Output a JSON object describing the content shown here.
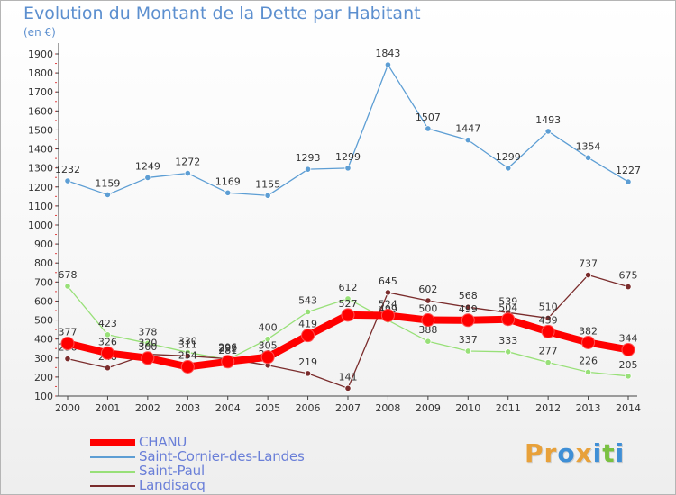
{
  "chart_data": {
    "type": "line",
    "title": "Evolution du Montant de la Dette par Habitant",
    "subtitle": "(en €)",
    "categories": [
      "2000",
      "2001",
      "2002",
      "2003",
      "2004",
      "2005",
      "2006",
      "2007",
      "2008",
      "2009",
      "2010",
      "2011",
      "2012",
      "2013",
      "2014"
    ],
    "ylim": [
      100,
      1900
    ],
    "yticks": [
      100,
      200,
      300,
      400,
      500,
      600,
      700,
      800,
      900,
      1000,
      1100,
      1200,
      1300,
      1400,
      1500,
      1600,
      1700,
      1800,
      1900
    ],
    "grid": false,
    "legend_position": "bottom-left",
    "series": [
      {
        "name": "CHANU",
        "color": "#ff0000",
        "values": [
          377,
          326,
          300,
          254,
          281,
          305,
          419,
          527,
          524,
          500,
          499,
          504,
          439,
          382,
          344
        ]
      },
      {
        "name": "Saint-Cornier-des-Landes",
        "color": "#5d9ed4",
        "values": [
          1232,
          1159,
          1249,
          1272,
          1169,
          1155,
          1293,
          1299,
          1843,
          1507,
          1447,
          1299,
          1493,
          1354,
          1227
        ]
      },
      {
        "name": "Saint-Paul",
        "color": "#98e078",
        "values": [
          678,
          423,
          378,
          330,
          292,
          400,
          543,
          612,
          499,
          388,
          337,
          333,
          277,
          226,
          205
        ]
      },
      {
        "name": "Landisacq",
        "color": "#7a2c2c",
        "values": [
          296,
          248,
          320,
          311,
          296,
          262,
          219,
          141,
          645,
          602,
          568,
          539,
          510,
          737,
          675
        ]
      }
    ]
  },
  "logo": {
    "letters": [
      {
        "char": "P",
        "color": "#e8a13a"
      },
      {
        "char": "r",
        "color": "#e8a13a"
      },
      {
        "char": "o",
        "color": "#3f8fd6"
      },
      {
        "char": "x",
        "color": "#e8a13a"
      },
      {
        "char": "i",
        "color": "#3f8fd6"
      },
      {
        "char": "t",
        "color": "#7ac142"
      },
      {
        "char": "i",
        "color": "#3f8fd6"
      }
    ]
  }
}
